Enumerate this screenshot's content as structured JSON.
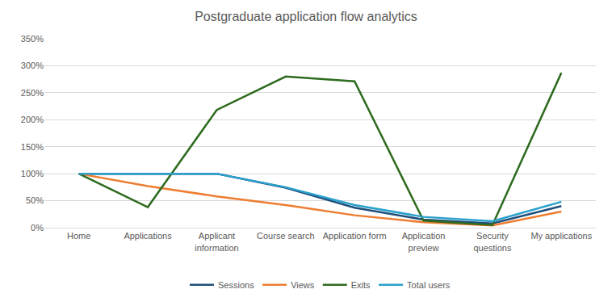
{
  "chart_data": {
    "type": "line",
    "title": "Postgraduate application flow analytics",
    "categories": [
      "Home",
      "Applications",
      "Applicant information",
      "Course search",
      "Application form",
      "Application preview",
      "Security questions",
      "My applications"
    ],
    "series": [
      {
        "name": "Sessions",
        "color": "#1f4e79",
        "values": [
          100,
          100,
          100,
          74,
          37,
          15,
          8,
          40
        ]
      },
      {
        "name": "Views",
        "color": "#ed7d31",
        "values": [
          100,
          77,
          58,
          42,
          23,
          10,
          4,
          30
        ]
      },
      {
        "name": "Exits",
        "color": "#2e6b1f",
        "values": [
          100,
          38,
          218,
          280,
          271,
          13,
          5,
          287
        ]
      },
      {
        "name": "Total users",
        "color": "#2aa0cc",
        "values": [
          100,
          100,
          100,
          75,
          42,
          20,
          12,
          48
        ]
      }
    ],
    "ylim": [
      0,
      350
    ],
    "yticks": [
      {
        "value": 0,
        "label": "0%"
      },
      {
        "value": 50,
        "label": "50%"
      },
      {
        "value": 100,
        "label": "100%"
      },
      {
        "value": 150,
        "label": "150%"
      },
      {
        "value": 200,
        "label": "200%"
      },
      {
        "value": 250,
        "label": "250%"
      },
      {
        "value": 300,
        "label": "300%"
      },
      {
        "value": 350,
        "label": "350%"
      }
    ],
    "grid": true,
    "legend": "bottom"
  }
}
